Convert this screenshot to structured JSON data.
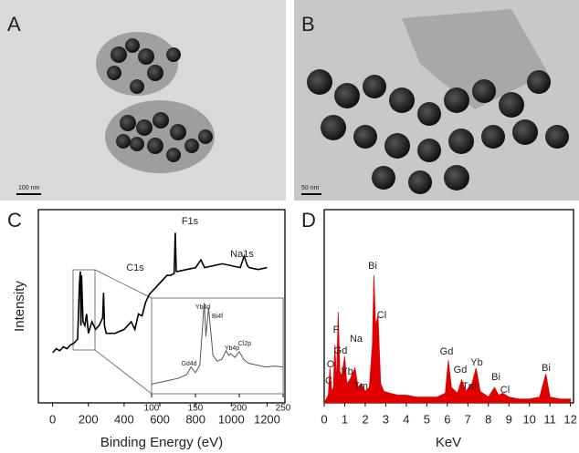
{
  "panels": {
    "labels": [
      "A",
      "B",
      "C",
      "D"
    ],
    "scale_bars": [
      "100 nm",
      "50 nm"
    ]
  },
  "chart_data": [
    {
      "type": "line",
      "color": "#000000",
      "ylabel": "Intensity",
      "xlabel": "Binding Energy (eV)",
      "xlim": [
        -80,
        1300
      ],
      "ylim": [
        0,
        100
      ],
      "xticks": [
        0,
        200,
        400,
        600,
        800,
        1000,
        1200
      ],
      "annotations": [
        "F1s",
        "C1s",
        "Na1s"
      ],
      "x": [
        0,
        20,
        40,
        60,
        80,
        100,
        120,
        140,
        150,
        155,
        158,
        162,
        170,
        180,
        190,
        200,
        220,
        240,
        260,
        280,
        285,
        290,
        300,
        350,
        400,
        420,
        440,
        460,
        480,
        500,
        520,
        540,
        560,
        580,
        600,
        620,
        640,
        660,
        680,
        686,
        692,
        700,
        750,
        800,
        830,
        850,
        900,
        950,
        1000,
        1050,
        1072,
        1090,
        1100,
        1150,
        1200
      ],
      "values": [
        26,
        28,
        27,
        29,
        28,
        30,
        31,
        33,
        62,
        68,
        40,
        66,
        42,
        40,
        46,
        36,
        42,
        38,
        40,
        44,
        57,
        40,
        36,
        36,
        38,
        40,
        42,
        38,
        46,
        45,
        52,
        56,
        58,
        60,
        62,
        64,
        66,
        66,
        67,
        88,
        68,
        68,
        69,
        70,
        74,
        70,
        71,
        72,
        71,
        70,
        76,
        71,
        70,
        69,
        70
      ]
    },
    {
      "type": "line",
      "color": "#555555",
      "xlim": [
        100,
        250
      ],
      "ylim": [
        0,
        100
      ],
      "xticks": [
        100,
        150,
        200,
        250
      ],
      "annotations": [
        "Gd4d",
        "Yb4d",
        "Bi4f",
        "Yb4p",
        "Cl2p"
      ],
      "x": [
        100,
        110,
        120,
        130,
        140,
        145,
        150,
        155,
        160,
        162,
        165,
        170,
        175,
        180,
        185,
        188,
        190,
        195,
        200,
        205,
        210,
        220,
        230,
        240,
        250
      ],
      "values": [
        10,
        12,
        14,
        16,
        20,
        28,
        22,
        30,
        95,
        60,
        90,
        40,
        34,
        36,
        45,
        40,
        42,
        38,
        44,
        36,
        32,
        30,
        28,
        29,
        28
      ]
    },
    {
      "type": "area",
      "color": "#e00000",
      "xlabel": "KeV",
      "xlim": [
        0,
        12.15
      ],
      "ylim": [
        0,
        100
      ],
      "xticks": [
        0,
        1,
        2,
        3,
        4,
        5,
        6,
        7,
        8,
        9,
        10,
        11,
        12
      ],
      "annotations": [
        "C",
        "O",
        "F",
        "Gd",
        "Na",
        "Yb",
        "Tm",
        "Bi",
        "Cl",
        "Gd",
        "Gd",
        "Tm",
        "Yb",
        "Bi",
        "Cl",
        "Bi"
      ],
      "x": [
        0,
        0.1,
        0.2,
        0.28,
        0.36,
        0.45,
        0.52,
        0.6,
        0.68,
        0.76,
        0.85,
        1.0,
        1.1,
        1.25,
        1.5,
        1.65,
        1.8,
        2.0,
        2.2,
        2.35,
        2.42,
        2.5,
        2.62,
        2.75,
        2.9,
        3.2,
        3.6,
        4.0,
        4.5,
        5.0,
        5.5,
        5.9,
        6.05,
        6.2,
        6.5,
        6.7,
        6.9,
        7.2,
        7.4,
        7.6,
        8.0,
        8.3,
        8.5,
        8.7,
        9.0,
        9.5,
        10.0,
        10.5,
        10.8,
        11.0,
        11.5,
        12.0
      ],
      "values": [
        0,
        2,
        4,
        18,
        6,
        8,
        30,
        10,
        47,
        16,
        14,
        24,
        10,
        12,
        18,
        8,
        10,
        6,
        8,
        30,
        66,
        40,
        45,
        10,
        6,
        5,
        4,
        4,
        3,
        3,
        3,
        5,
        22,
        8,
        5,
        12,
        6,
        10,
        18,
        6,
        3,
        8,
        4,
        5,
        3,
        2,
        2,
        3,
        15,
        3,
        2,
        2
      ]
    }
  ]
}
